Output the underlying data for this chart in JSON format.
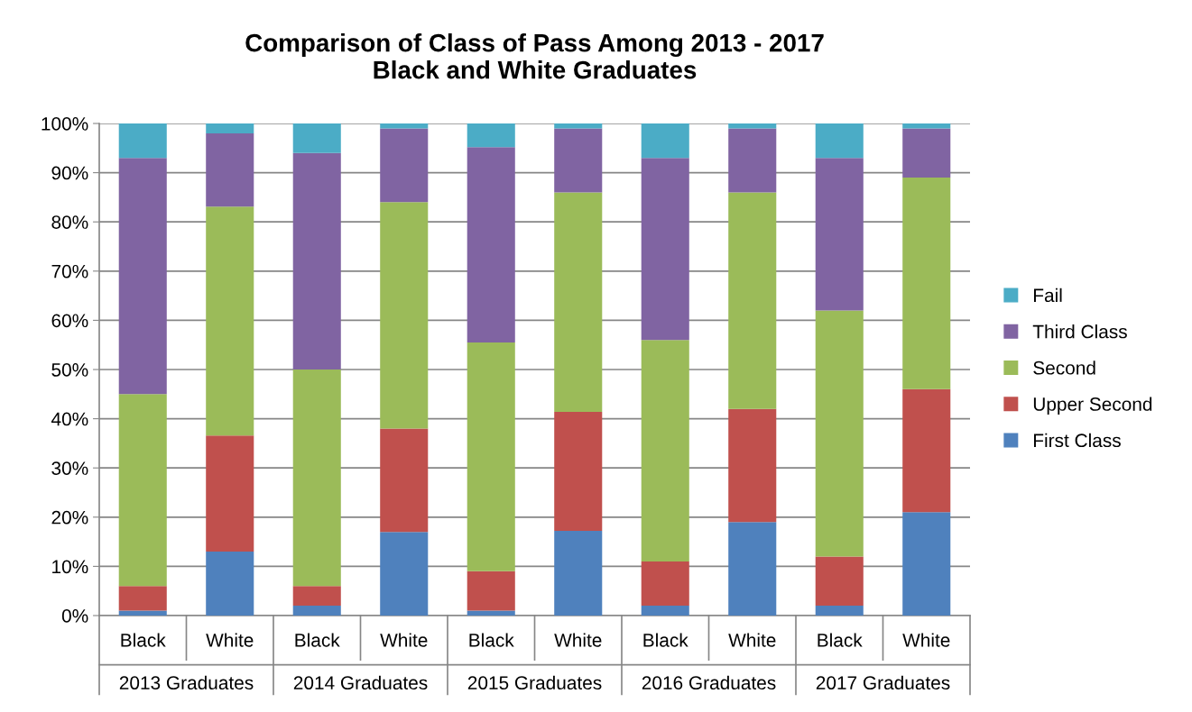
{
  "chart_data": {
    "type": "bar",
    "stacked": true,
    "title": "Comparison of Class of Pass Among 2013 - 2017\nBlack and White Graduates",
    "categories": [
      "Black",
      "White",
      "Black",
      "White",
      "Black",
      "White",
      "Black",
      "White",
      "Black",
      "White"
    ],
    "annotations": [
      "2013 Graduates",
      "2014 Graduates",
      "2015 Graduates",
      "2016 Graduates",
      "2017 Graduates"
    ],
    "series": [
      {
        "name": "First Class",
        "color": "#4f81bd",
        "values": [
          1,
          13,
          2,
          17,
          1,
          17.2,
          2,
          19,
          2,
          21
        ]
      },
      {
        "name": "Upper Second",
        "color": "#c0504d",
        "values": [
          5,
          23.6,
          4,
          21,
          8,
          24.2,
          9,
          23,
          10,
          25
        ]
      },
      {
        "name": "Second",
        "color": "#9bbb59",
        "values": [
          39,
          46.5,
          44,
          46,
          46.5,
          44.6,
          45,
          44,
          50,
          43
        ]
      },
      {
        "name": "Third Class",
        "color": "#8064a2",
        "values": [
          48,
          14.9,
          44,
          15,
          39.7,
          13,
          37,
          13,
          31,
          10
        ]
      },
      {
        "name": "Fail",
        "color": "#4bacc6",
        "values": [
          7,
          2,
          6,
          1,
          4.8,
          1,
          7,
          1,
          7,
          1
        ]
      }
    ],
    "ylim": [
      0,
      100
    ],
    "yticks": [
      {
        "value": 0,
        "label": "0%"
      },
      {
        "value": 10,
        "label": "10%"
      },
      {
        "value": 20,
        "label": "20%"
      },
      {
        "value": 30,
        "label": "30%"
      },
      {
        "value": 40,
        "label": "40%"
      },
      {
        "value": 50,
        "label": "50%"
      },
      {
        "value": 60,
        "label": "60%"
      },
      {
        "value": 70,
        "label": "70%"
      },
      {
        "value": 80,
        "label": "80%"
      },
      {
        "value": 90,
        "label": "90%"
      },
      {
        "value": 100,
        "label": "100%"
      }
    ],
    "grid": "y",
    "legend": "right"
  }
}
